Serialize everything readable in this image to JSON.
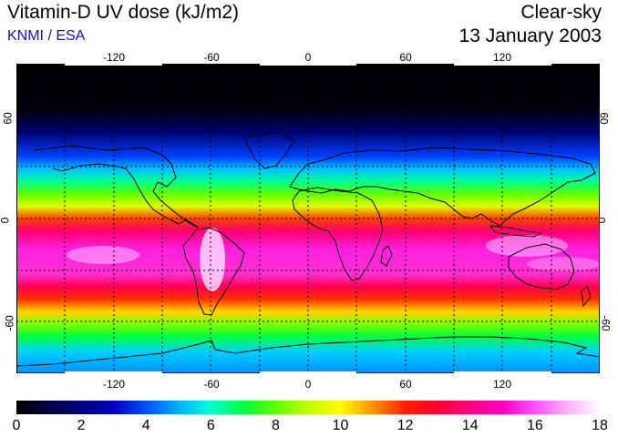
{
  "header": {
    "title": "Vitamin-D UV dose (kJ/m2)",
    "source": "KNMI / ESA",
    "mode": "Clear-sky",
    "date": "13 January 2003"
  },
  "map": {
    "projection": "equirectangular",
    "lon_range": [
      -180,
      180
    ],
    "lat_range": [
      -90,
      90
    ],
    "lon_ticks": [
      "-120",
      "-60",
      "0",
      "60",
      "120"
    ],
    "lat_ticks_left": [
      "60",
      "0",
      "-60"
    ],
    "lat_ticks_right": [
      "60",
      "0",
      "-60"
    ],
    "grid": "dotted",
    "coastlines": true
  },
  "colorbar": {
    "min": 0,
    "max": 18,
    "labels": [
      "0",
      "2",
      "4",
      "6",
      "8",
      "10",
      "12",
      "14",
      "16",
      "18"
    ],
    "stops": [
      {
        "value": 0,
        "color": "#000000"
      },
      {
        "value": 3,
        "color": "#0000c0"
      },
      {
        "value": 4,
        "color": "#0050ff"
      },
      {
        "value": 5,
        "color": "#00b0ff"
      },
      {
        "value": 6,
        "color": "#00ffd0"
      },
      {
        "value": 7,
        "color": "#00ff40"
      },
      {
        "value": 8,
        "color": "#60ff00"
      },
      {
        "value": 9,
        "color": "#c0ff00"
      },
      {
        "value": 10,
        "color": "#ffff00"
      },
      {
        "value": 11,
        "color": "#ff9000"
      },
      {
        "value": 12,
        "color": "#ff2000"
      },
      {
        "value": 13,
        "color": "#ff0030"
      },
      {
        "value": 14,
        "color": "#ff0080"
      },
      {
        "value": 15,
        "color": "#ff00c0"
      },
      {
        "value": 16,
        "color": "#ff50ff"
      },
      {
        "value": 17,
        "color": "#ffb0ff"
      },
      {
        "value": 18,
        "color": "#ffffff"
      }
    ]
  }
}
